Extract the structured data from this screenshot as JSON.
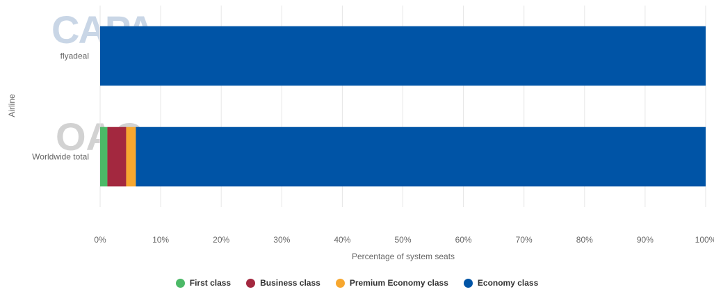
{
  "chart_data": {
    "type": "bar",
    "orientation": "horizontal",
    "stacked": true,
    "categories": [
      "flyadeal",
      "Worldwide total"
    ],
    "series": [
      {
        "name": "First class",
        "color": "#4cb967",
        "values": [
          0,
          1.2
        ]
      },
      {
        "name": "Business class",
        "color": "#a3283f",
        "values": [
          0,
          3.1
        ]
      },
      {
        "name": "Premium Economy class",
        "color": "#f7a72f",
        "values": [
          0,
          1.6
        ]
      },
      {
        "name": "Economy class",
        "color": "#0054a6",
        "values": [
          100,
          94.1
        ]
      }
    ],
    "xlabel": "Percentage of system seats",
    "ylabel": "Airline",
    "xlim": [
      0,
      100
    ],
    "xticks": [
      "0%",
      "10%",
      "20%",
      "30%",
      "40%",
      "50%",
      "60%",
      "70%",
      "80%",
      "90%",
      "100%"
    ],
    "grid": true,
    "legend_position": "bottom"
  },
  "watermarks": {
    "capa": "CAPA",
    "oag": "OAG"
  }
}
